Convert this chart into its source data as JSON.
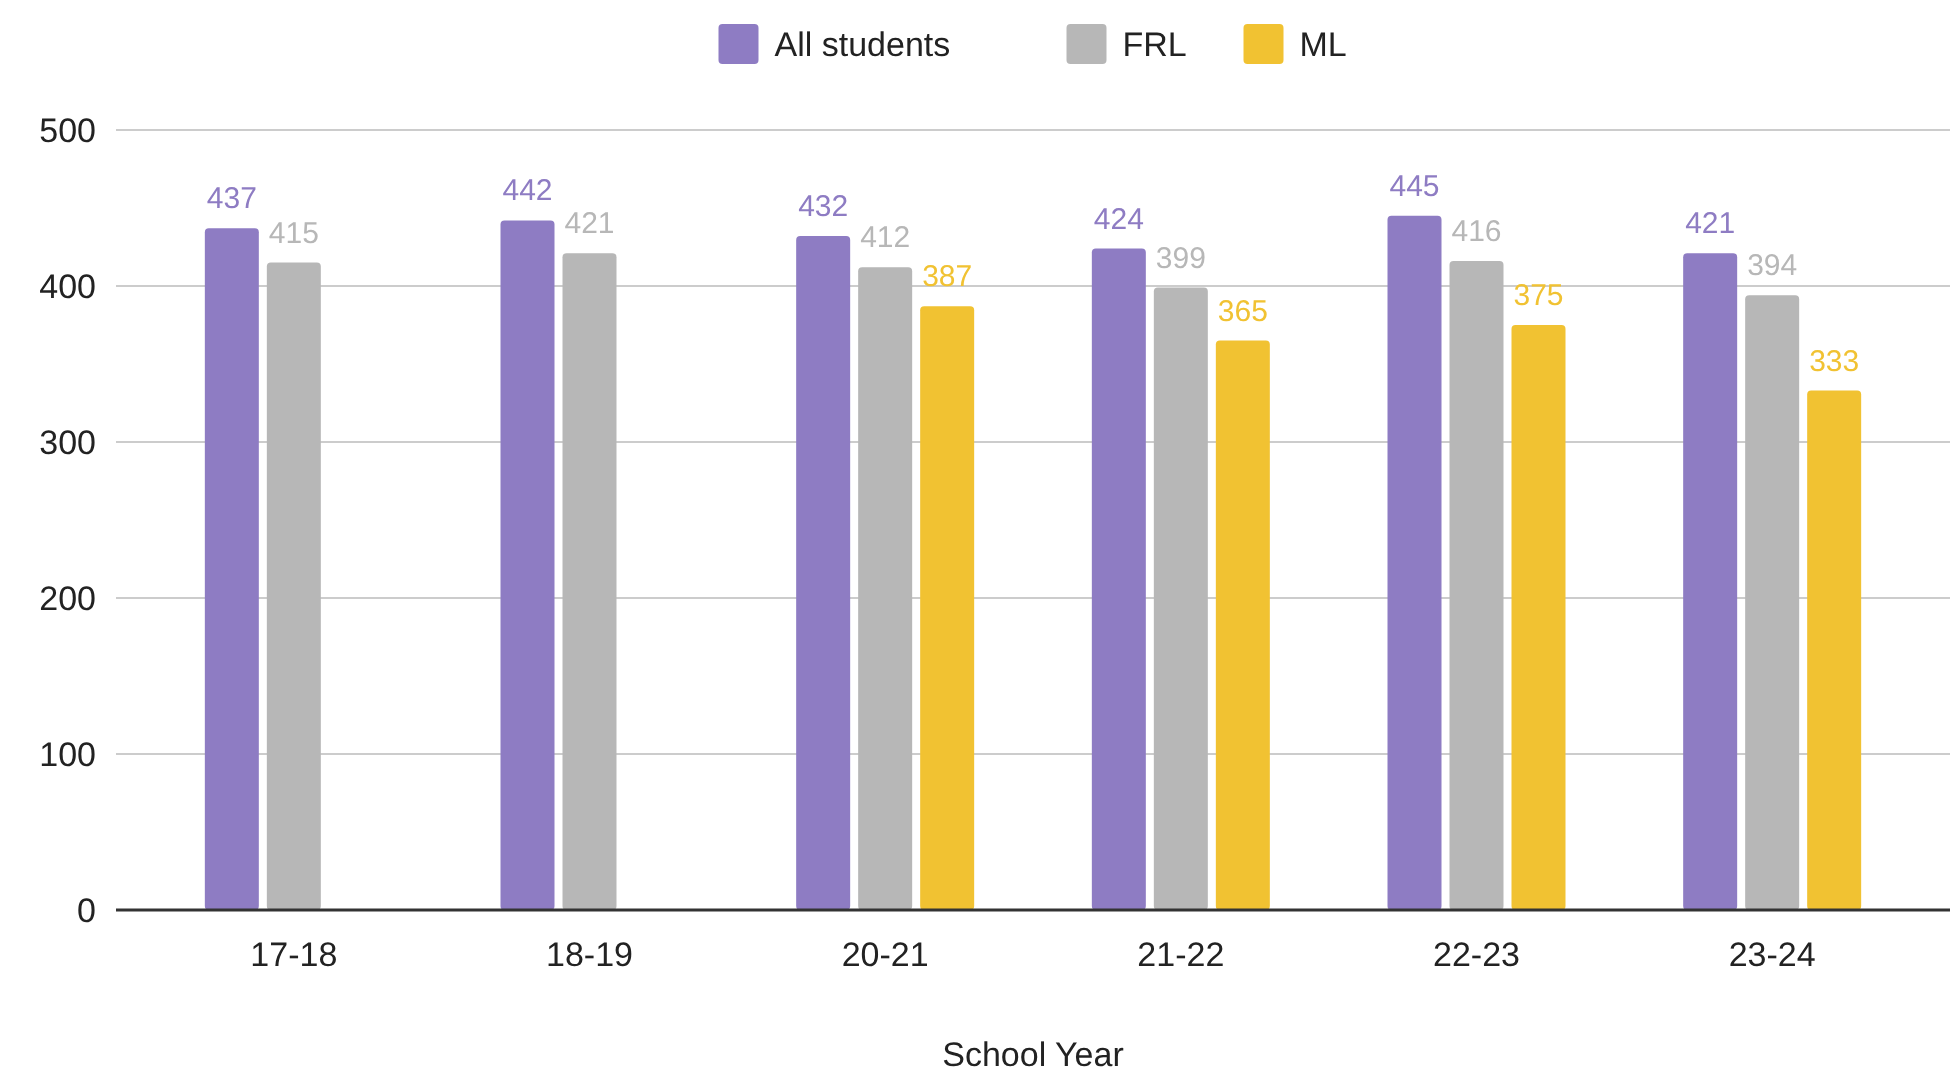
{
  "chart_data": {
    "type": "bar",
    "xlabel": "School Year",
    "categories": [
      "17-18",
      "18-19",
      "20-21",
      "21-22",
      "22-23",
      "23-24"
    ],
    "series": [
      {
        "name": "All students",
        "color": "#8e7cc3",
        "values": [
          437,
          442,
          432,
          424,
          445,
          421
        ]
      },
      {
        "name": "FRL",
        "color": "#b7b7b7",
        "values": [
          415,
          421,
          412,
          399,
          416,
          394
        ]
      },
      {
        "name": "ML",
        "color": "#f1c232",
        "values": [
          null,
          null,
          387,
          365,
          375,
          333
        ]
      }
    ],
    "ylim": [
      0,
      500
    ],
    "yticks": [
      0,
      100,
      200,
      300,
      400,
      500
    ],
    "grid": "y",
    "legend": "top",
    "data_labels": true
  }
}
